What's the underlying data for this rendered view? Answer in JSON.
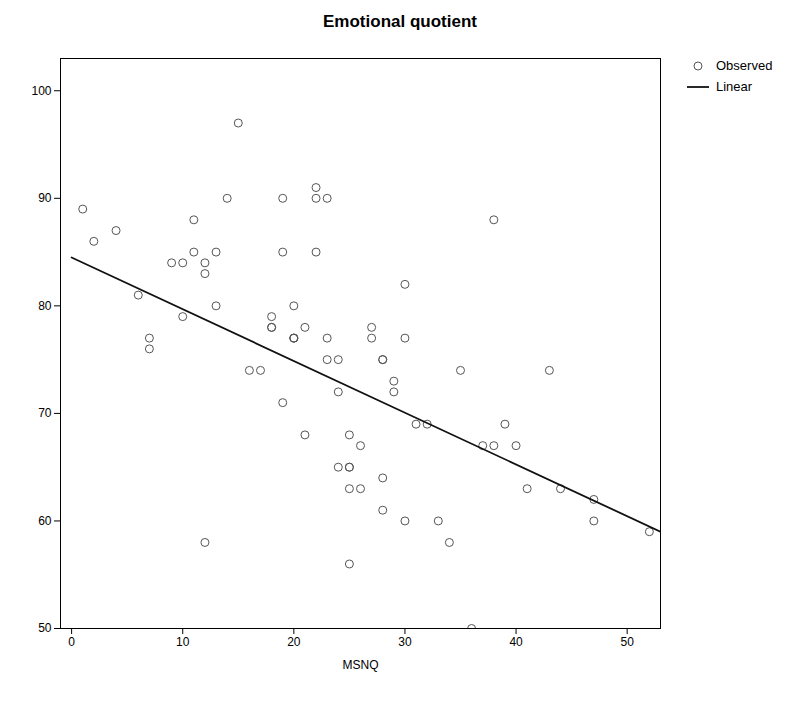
{
  "chart_data": {
    "type": "scatter",
    "title": "Emotional quotient",
    "xlabel": "MSNQ",
    "xlim": [
      -1,
      53
    ],
    "ylim": [
      50,
      103
    ],
    "xticks": [
      0,
      10,
      20,
      30,
      40,
      50
    ],
    "yticks": [
      50,
      60,
      70,
      80,
      90,
      100
    ],
    "grid": false,
    "legend": "upper right",
    "series": [
      {
        "name": "Observed",
        "type": "scatter",
        "marker": "circle",
        "color": "#555555",
        "x": [
          1,
          2,
          4,
          6,
          7,
          7,
          9,
          10,
          10,
          11,
          11,
          12,
          12,
          12,
          13,
          13,
          14,
          15,
          16,
          17,
          18,
          18,
          18,
          19,
          19,
          19,
          20,
          20,
          20,
          20,
          21,
          21,
          22,
          22,
          22,
          23,
          23,
          23,
          24,
          24,
          24,
          25,
          25,
          25,
          25,
          25,
          26,
          26,
          27,
          27,
          28,
          28,
          28,
          28,
          29,
          29,
          30,
          30,
          30,
          31,
          32,
          33,
          34,
          35,
          36,
          37,
          38,
          38,
          39,
          40,
          41,
          43,
          44,
          47,
          47,
          52
        ],
        "values": [
          89,
          86,
          87,
          81,
          77,
          76,
          84,
          84,
          79,
          88,
          85,
          84,
          83,
          58,
          85,
          80,
          90,
          97,
          74,
          74,
          79,
          78,
          78,
          90,
          85,
          71,
          80,
          77,
          77,
          77,
          78,
          68,
          91,
          90,
          85,
          90,
          77,
          75,
          75,
          72,
          65,
          68,
          65,
          65,
          63,
          56,
          67,
          63,
          78,
          77,
          75,
          75,
          64,
          61,
          73,
          72,
          82,
          77,
          60,
          69,
          69,
          60,
          58,
          74,
          50,
          67,
          88,
          67,
          69,
          67,
          63,
          74,
          63,
          62,
          60,
          59
        ]
      },
      {
        "name": "Linear",
        "type": "line",
        "line_style": "solid",
        "color": "#111111",
        "x": [
          0,
          53
        ],
        "values": [
          84.5,
          59.0
        ]
      }
    ]
  }
}
